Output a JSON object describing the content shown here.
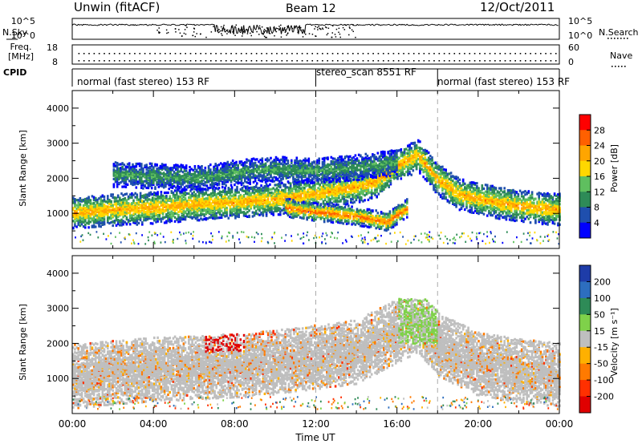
{
  "header": {
    "station": "Unwin (fitACF)",
    "beam": "Beam 12",
    "date": "12/Oct/2011"
  },
  "status_panels": {
    "nsky_label": "N.Sky",
    "nsearch_label": "N.Search",
    "noise_ticks": [
      "10^5",
      "10^0"
    ],
    "freq_label": "Freq.",
    "freq_unit": "[MHz]",
    "freq_ticks": [
      "18",
      "8"
    ],
    "nave_label": "Nave",
    "nave_ticks": [
      "60",
      "0"
    ],
    "cpid_label": "CPID",
    "cpid_segments": [
      {
        "label": "normal (fast stereo) 153 RF",
        "start_hour": 0,
        "end_hour": 12.0
      },
      {
        "label": "stereo_scan 8551 RF",
        "start_hour": 12.0,
        "end_hour": 18.0
      },
      {
        "label": "normal (fast stereo) 153 RF",
        "start_hour": 18.0,
        "end_hour": 24.0
      }
    ]
  },
  "colors": {
    "power_scale": [
      "#0000ff",
      "#1f4fae",
      "#2e8b57",
      "#5fbf5f",
      "#ffd700",
      "#ffa500",
      "#ff6000",
      "#ff0000"
    ],
    "velocity_scale": [
      "#1e3ca8",
      "#2d6ebf",
      "#2e8b57",
      "#7fd14a",
      "#bfbfbf",
      "#ffb000",
      "#ff7a00",
      "#ff3000",
      "#e00000"
    ],
    "ground_scatter": "#bebebe"
  },
  "chart_data": [
    {
      "type": "heatmap",
      "panel": "power",
      "ylabel": "Slant Range [km]",
      "ylim": [
        0,
        4500
      ],
      "yticks": [
        "4000",
        "3000",
        "2000",
        "1000"
      ],
      "xlim": [
        0,
        24
      ],
      "colorbar_label": "Power [dB]",
      "colorbar_ticks": [
        "28",
        "24",
        "20",
        "16",
        "12",
        "8",
        "4"
      ],
      "bands": [
        {
          "hours": [
            0,
            2,
            4,
            6,
            8,
            9,
            10,
            11,
            12,
            13,
            14,
            15,
            16,
            17,
            18,
            19,
            20,
            21,
            22,
            23,
            24
          ],
          "center_km": [
            1050,
            1150,
            1200,
            1300,
            1350,
            1400,
            1450,
            1500,
            1600,
            1700,
            1800,
            1950,
            2400,
            2700,
            2000,
            1600,
            1450,
            1350,
            1250,
            1200,
            1150
          ],
          "width_km": 450,
          "peak_db": 22
        },
        {
          "hours": [
            2,
            4,
            6,
            7,
            8,
            10,
            12,
            14,
            16
          ],
          "center_km": [
            2150,
            2100,
            2050,
            2100,
            2200,
            2300,
            2250,
            2350,
            2500
          ],
          "width_km": 350,
          "peak_db": 12
        },
        {
          "hours": [
            10.5,
            11.5,
            12.5,
            13.5,
            14.5,
            15.5,
            16.5
          ],
          "center_km": [
            1200,
            1100,
            1050,
            1000,
            900,
            800,
            1200
          ],
          "width_km": 250,
          "peak_db": 26
        }
      ]
    },
    {
      "type": "heatmap",
      "panel": "velocity",
      "ylabel": "Slant Range [km]",
      "ylim": [
        0,
        4500
      ],
      "yticks": [
        "4000",
        "3000",
        "2000",
        "1000"
      ],
      "xlim": [
        0,
        24
      ],
      "xticks": [
        "00:00",
        "04:00",
        "08:00",
        "12:00",
        "16:00",
        "20:00",
        "00:00"
      ],
      "xlabel": "Time UT",
      "colorbar_label": "Velocity [m s⁻¹]",
      "colorbar_ticks": [
        "200",
        "100",
        "50",
        "15",
        "-15",
        "-50",
        "-100",
        "-200"
      ],
      "bands": [
        {
          "hours": [
            0,
            2,
            4,
            6,
            8,
            10,
            12,
            14,
            16,
            17,
            18,
            20,
            22,
            24
          ],
          "center_km": [
            1100,
            1200,
            1300,
            1350,
            1400,
            1500,
            1650,
            1800,
            2400,
            2700,
            2000,
            1450,
            1250,
            1150
          ],
          "width_km": 900,
          "typical_velocity": 0
        }
      ]
    }
  ]
}
